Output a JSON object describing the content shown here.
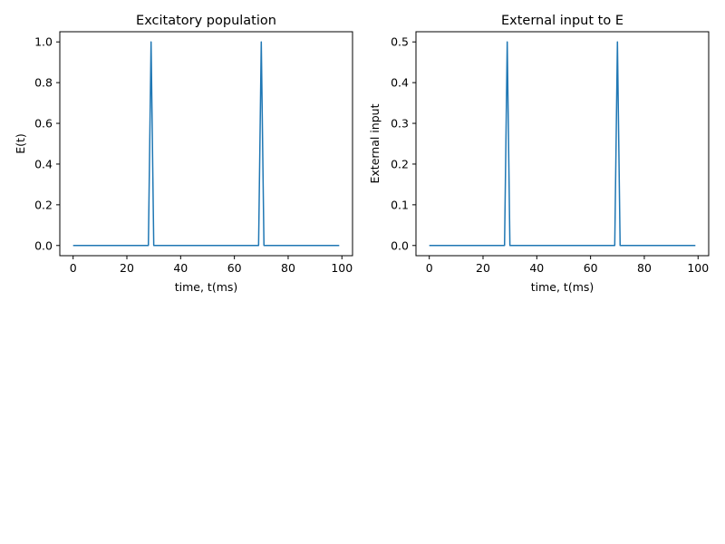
{
  "chart_data": [
    {
      "type": "line",
      "title": "Excitatory population",
      "xlabel": "time, t(ms)",
      "ylabel": "E(t)",
      "xlim": [
        -4.95,
        103.95
      ],
      "ylim": [
        -0.05,
        1.05
      ],
      "xticks": [
        0,
        20,
        40,
        60,
        80,
        100
      ],
      "xtick_labels": [
        "0",
        "20",
        "40",
        "60",
        "80",
        "100"
      ],
      "yticks": [
        0.0,
        0.2,
        0.4,
        0.6,
        0.8,
        1.0
      ],
      "ytick_labels": [
        "0.0",
        "0.2",
        "0.4",
        "0.6",
        "0.8",
        "1.0"
      ],
      "grid": false,
      "color": "#1f77b4",
      "series": [
        {
          "x": [
            0,
            28,
            29,
            30,
            69,
            70,
            71,
            99
          ],
          "y": [
            0,
            0,
            1.0,
            0,
            0,
            1.0,
            0,
            0
          ]
        }
      ]
    },
    {
      "type": "line",
      "title": "External input to E",
      "xlabel": "time, t(ms)",
      "ylabel": "External input",
      "xlim": [
        -4.95,
        103.95
      ],
      "ylim": [
        -0.025,
        0.525
      ],
      "xticks": [
        0,
        20,
        40,
        60,
        80,
        100
      ],
      "xtick_labels": [
        "0",
        "20",
        "40",
        "60",
        "80",
        "100"
      ],
      "yticks": [
        0.0,
        0.1,
        0.2,
        0.3,
        0.4,
        0.5
      ],
      "ytick_labels": [
        "0.0",
        "0.1",
        "0.2",
        "0.3",
        "0.4",
        "0.5"
      ],
      "grid": false,
      "color": "#1f77b4",
      "series": [
        {
          "x": [
            0,
            28,
            29,
            30,
            69,
            70,
            71,
            99
          ],
          "y": [
            0,
            0,
            0.5,
            0,
            0,
            0.5,
            0,
            0
          ]
        }
      ]
    }
  ]
}
